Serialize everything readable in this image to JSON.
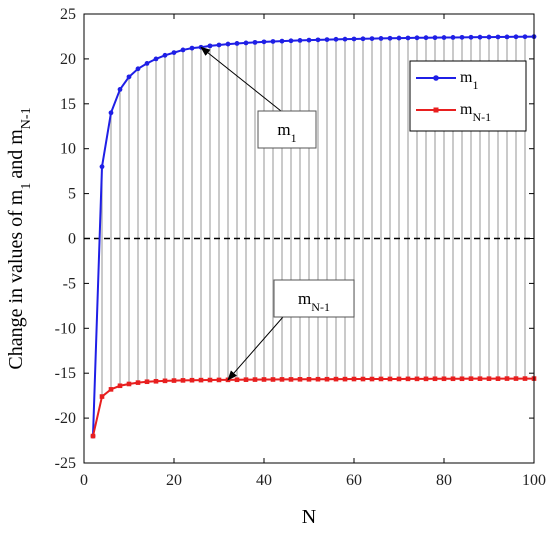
{
  "chart_data": {
    "type": "line",
    "xlabel": "N",
    "ylabel": {
      "text": "Change in values of m",
      "sub1": "1",
      "mid": "and m",
      "sub2": "N-1"
    },
    "xlim": [
      0,
      100
    ],
    "ylim": [
      -25,
      25
    ],
    "x_ticks": [
      0,
      20,
      40,
      60,
      80,
      100
    ],
    "y_ticks": [
      -25,
      -20,
      -15,
      -10,
      -5,
      0,
      5,
      10,
      15,
      20,
      25
    ],
    "grid": false,
    "zero_line": {
      "y": 0,
      "style": "dashed",
      "color": "#000000"
    },
    "stems": {
      "color": "#a6a6a6",
      "description": "vertical lines joining m1 and mN-1 at each N"
    },
    "legend": {
      "position": "top-right"
    },
    "x": [
      2,
      4,
      6,
      8,
      10,
      12,
      14,
      16,
      18,
      20,
      22,
      24,
      26,
      28,
      30,
      32,
      34,
      36,
      38,
      40,
      42,
      44,
      46,
      48,
      50,
      52,
      54,
      56,
      58,
      60,
      62,
      64,
      66,
      68,
      70,
      72,
      74,
      76,
      78,
      80,
      82,
      84,
      86,
      88,
      90,
      92,
      94,
      96,
      98,
      100
    ],
    "series": [
      {
        "name": "m",
        "name_sub": "1",
        "color": "#1f1fe6",
        "marker": "circle",
        "values": [
          -22.0,
          8.0,
          14.0,
          16.6,
          18.0,
          18.9,
          19.5,
          20.0,
          20.4,
          20.7,
          21.0,
          21.2,
          21.3,
          21.45,
          21.55,
          21.65,
          21.72,
          21.78,
          21.84,
          21.9,
          21.94,
          21.98,
          22.02,
          22.06,
          22.09,
          22.12,
          22.15,
          22.18,
          22.2,
          22.22,
          22.24,
          22.26,
          22.28,
          22.3,
          22.32,
          22.33,
          22.35,
          22.36,
          22.37,
          22.38,
          22.39,
          22.4,
          22.41,
          22.42,
          22.43,
          22.44,
          22.45,
          22.46,
          22.47,
          22.48
        ]
      },
      {
        "name": "m",
        "name_sub": "N-1",
        "color": "#e81f1f",
        "marker": "square",
        "values": [
          -22.0,
          -17.6,
          -16.8,
          -16.4,
          -16.2,
          -16.05,
          -15.95,
          -15.9,
          -15.85,
          -15.82,
          -15.8,
          -15.78,
          -15.77,
          -15.76,
          -15.75,
          -15.74,
          -15.73,
          -15.72,
          -15.71,
          -15.7,
          -15.7,
          -15.69,
          -15.69,
          -15.68,
          -15.68,
          -15.67,
          -15.67,
          -15.66,
          -15.66,
          -15.65,
          -15.65,
          -15.65,
          -15.64,
          -15.64,
          -15.64,
          -15.63,
          -15.63,
          -15.63,
          -15.62,
          -15.62,
          -15.62,
          -15.62,
          -15.61,
          -15.61,
          -15.61,
          -15.61,
          -15.6,
          -15.6,
          -15.6,
          -15.6
        ]
      }
    ],
    "annotations": [
      {
        "label": "m",
        "label_sub": "1",
        "arrow_to": [
          26,
          21.3
        ]
      },
      {
        "label": "m",
        "label_sub": "N-1",
        "arrow_to": [
          32,
          -15.74
        ]
      }
    ]
  }
}
